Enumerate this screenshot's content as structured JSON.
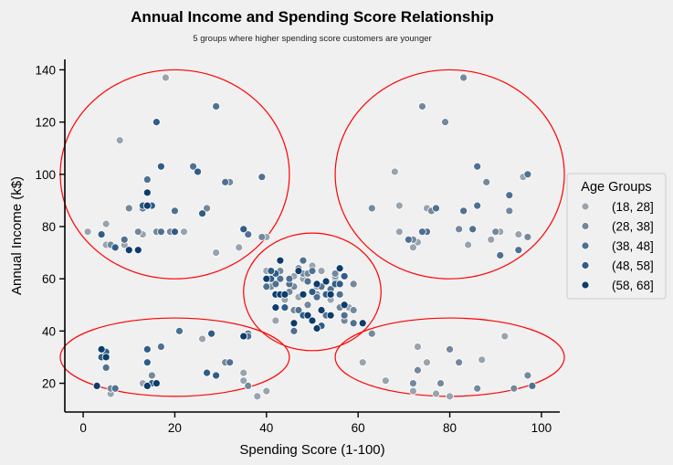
{
  "chart_data": {
    "type": "scatter",
    "title": "Annual Income and Spending Score Relationship",
    "subtitle": "5 groups where higher spending score customers are younger",
    "xlabel": "Spending Score (1-100)",
    "ylabel": "Annual Income (k$)",
    "xlim": [
      -4,
      104
    ],
    "ylim": [
      9,
      144
    ],
    "x_ticks": [
      0,
      20,
      40,
      60,
      80,
      100
    ],
    "y_ticks": [
      20,
      40,
      60,
      80,
      100,
      120,
      140
    ],
    "grid": false,
    "legend": {
      "title": "Age Groups",
      "placement": "center-right",
      "entries": [
        "(18, 28]",
        "(28, 38]",
        "(38, 48]",
        "(48, 58]",
        "(58, 68]"
      ]
    },
    "series_colors": [
      "#98a3ae",
      "#74889b",
      "#4f7191",
      "#2f5d87",
      "#0d3d6c"
    ],
    "cluster_outline_color": "#ff0000",
    "clusters": [
      {
        "cx": 20,
        "cy": 100,
        "rx": 25,
        "ry": 40
      },
      {
        "cx": 80,
        "cy": 100,
        "rx": 25,
        "ry": 40
      },
      {
        "cx": 50,
        "cy": 55,
        "rx": 15,
        "ry": 22.5
      },
      {
        "cx": 20,
        "cy": 30,
        "rx": 25,
        "ry": 15
      },
      {
        "cx": 80,
        "cy": 30,
        "rx": 25,
        "ry": 15
      }
    ],
    "series": [
      {
        "name": "(18, 28]",
        "points": [
          [
            5,
            81
          ],
          [
            13,
            77
          ],
          [
            9,
            73
          ],
          [
            1,
            78
          ],
          [
            18,
            137
          ],
          [
            22,
            78
          ],
          [
            29,
            70
          ],
          [
            40,
            76
          ],
          [
            5,
            73
          ],
          [
            8,
            113
          ],
          [
            34,
            72
          ],
          [
            75,
            87
          ],
          [
            68,
            101
          ],
          [
            84,
            73
          ],
          [
            95,
            77
          ],
          [
            96,
            99
          ],
          [
            69,
            88
          ],
          [
            69,
            78
          ],
          [
            73,
            74
          ],
          [
            74,
            126
          ],
          [
            91,
            78
          ],
          [
            89,
            75
          ],
          [
            72,
            72
          ],
          [
            40,
            63
          ],
          [
            42,
            54
          ],
          [
            46,
            61
          ],
          [
            48,
            60
          ],
          [
            52,
            63
          ],
          [
            58,
            49
          ],
          [
            44,
            52
          ],
          [
            54,
            52
          ],
          [
            55,
            60
          ],
          [
            50,
            65
          ],
          [
            47,
            53
          ],
          [
            51,
            57
          ],
          [
            42,
            44
          ],
          [
            15,
            20
          ],
          [
            35,
            24
          ],
          [
            35,
            21
          ],
          [
            26,
            37
          ],
          [
            38,
            15
          ],
          [
            6,
            16
          ],
          [
            40,
            17
          ],
          [
            13,
            20
          ],
          [
            75,
            28
          ],
          [
            87,
            29
          ],
          [
            77,
            16
          ],
          [
            61,
            28
          ],
          [
            73,
            34
          ],
          [
            92,
            38
          ],
          [
            72,
            17
          ],
          [
            66,
            21
          ],
          [
            80,
            15
          ]
        ]
      },
      {
        "name": "(28, 38]",
        "points": [
          [
            12,
            78
          ],
          [
            16,
            78
          ],
          [
            27,
            87
          ],
          [
            19,
            78
          ],
          [
            6,
            73
          ],
          [
            39,
            76
          ],
          [
            10,
            87
          ],
          [
            32,
            97
          ],
          [
            35,
            79
          ],
          [
            82,
            79
          ],
          [
            83,
            137
          ],
          [
            79,
            120
          ],
          [
            97,
            76
          ],
          [
            74,
            126
          ],
          [
            76,
            86
          ],
          [
            90,
            78
          ],
          [
            72,
            75
          ],
          [
            93,
            86
          ],
          [
            88,
            97
          ],
          [
            63,
            87
          ],
          [
            55,
            61
          ],
          [
            47,
            64
          ],
          [
            59,
            58
          ],
          [
            55,
            62
          ],
          [
            46,
            57
          ],
          [
            59,
            48
          ],
          [
            48,
            62
          ],
          [
            56,
            49
          ],
          [
            46,
            48
          ],
          [
            51,
            54
          ],
          [
            49,
            62
          ],
          [
            45,
            55
          ],
          [
            43,
            63
          ],
          [
            41,
            57
          ],
          [
            57,
            44
          ],
          [
            49,
            50
          ],
          [
            31,
            28
          ],
          [
            6,
            18
          ],
          [
            15,
            23
          ],
          [
            36,
            19
          ],
          [
            97,
            23
          ],
          [
            73,
            25
          ],
          [
            86,
            18
          ],
          [
            78,
            20
          ],
          [
            94,
            18
          ],
          [
            80,
            33
          ],
          [
            82,
            28
          ],
          [
            63,
            39
          ],
          [
            72,
            20
          ]
        ]
      },
      {
        "name": "(38, 48]",
        "points": [
          [
            13,
            87
          ],
          [
            36,
            77
          ],
          [
            20,
            86
          ],
          [
            14,
            98
          ],
          [
            16,
            120
          ],
          [
            9,
            75
          ],
          [
            29,
            126
          ],
          [
            17,
            78
          ],
          [
            24,
            103
          ],
          [
            31,
            97
          ],
          [
            39,
            99
          ],
          [
            86,
            103
          ],
          [
            91,
            69
          ],
          [
            95,
            71
          ],
          [
            97,
            100
          ],
          [
            85,
            79
          ],
          [
            77,
            87
          ],
          [
            71,
            75
          ],
          [
            86,
            88
          ],
          [
            93,
            92
          ],
          [
            75,
            78
          ],
          [
            74,
            78
          ],
          [
            83,
            86
          ],
          [
            43,
            60
          ],
          [
            45,
            58
          ],
          [
            49,
            59
          ],
          [
            42,
            58
          ],
          [
            56,
            54
          ],
          [
            52,
            57
          ],
          [
            48,
            67
          ],
          [
            59,
            43
          ],
          [
            40,
            57
          ],
          [
            53,
            46
          ],
          [
            45,
            60
          ],
          [
            47,
            48
          ],
          [
            54,
            56
          ],
          [
            46,
            40
          ],
          [
            57,
            46
          ],
          [
            50,
            63
          ],
          [
            51,
            53
          ],
          [
            36,
            39
          ],
          [
            5,
            26
          ],
          [
            14,
            19
          ],
          [
            7,
            18
          ],
          [
            14,
            28
          ],
          [
            36,
            38
          ],
          [
            32,
            28
          ],
          [
            21,
            40
          ],
          [
            17,
            34
          ],
          [
            98,
            19
          ]
        ]
      },
      {
        "name": "(48, 58]",
        "points": [
          [
            25,
            101
          ],
          [
            26,
            85
          ],
          [
            13,
            88
          ],
          [
            15,
            88
          ],
          [
            17,
            103
          ],
          [
            20,
            78
          ],
          [
            7,
            72
          ],
          [
            35,
            79
          ],
          [
            16,
            120
          ],
          [
            4,
            77
          ],
          [
            41,
            60
          ],
          [
            42,
            62
          ],
          [
            55,
            58
          ],
          [
            53,
            54
          ],
          [
            44,
            49
          ],
          [
            48,
            46
          ],
          [
            41,
            63
          ],
          [
            57,
            61
          ],
          [
            52,
            42
          ],
          [
            50,
            55
          ],
          [
            56,
            58
          ],
          [
            5,
            32
          ],
          [
            4,
            33
          ],
          [
            14,
            28
          ],
          [
            27,
            24
          ],
          [
            29,
            23
          ],
          [
            4,
            30
          ],
          [
            15,
            20
          ],
          [
            14,
            19
          ],
          [
            35,
            38
          ],
          [
            14,
            33
          ],
          [
            28,
            39
          ],
          [
            3,
            19
          ]
        ]
      },
      {
        "name": "(58, 68]",
        "points": [
          [
            10,
            71
          ],
          [
            12,
            71
          ],
          [
            14,
            88
          ],
          [
            14,
            93
          ],
          [
            14,
            93
          ],
          [
            43,
            67
          ],
          [
            47,
            63
          ],
          [
            46,
            43
          ],
          [
            42,
            54
          ],
          [
            51,
            58
          ],
          [
            54,
            46
          ],
          [
            40,
            60
          ],
          [
            49,
            46
          ],
          [
            53,
            59
          ],
          [
            52,
            48
          ],
          [
            42,
            49
          ],
          [
            61,
            43
          ],
          [
            57,
            50
          ],
          [
            56,
            64
          ],
          [
            51,
            41
          ],
          [
            43,
            54
          ],
          [
            48,
            54
          ],
          [
            44,
            54
          ],
          [
            50,
            44
          ],
          [
            54,
            54
          ],
          [
            3,
            19
          ],
          [
            14,
            19
          ],
          [
            5,
            30
          ],
          [
            4,
            33
          ],
          [
            16,
            20
          ],
          [
            35,
            38
          ]
        ]
      }
    ]
  }
}
